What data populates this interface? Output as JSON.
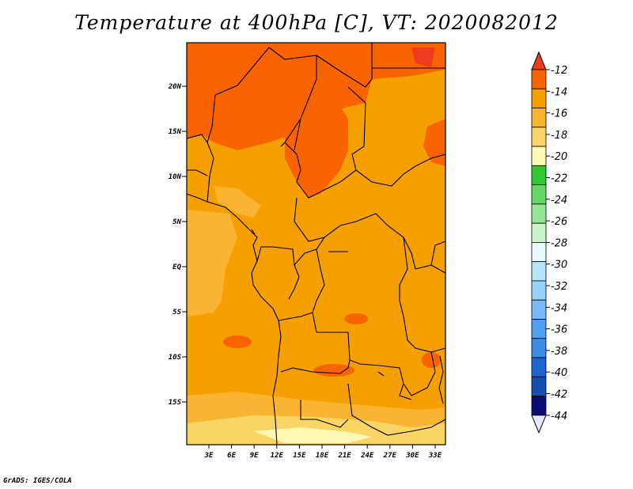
{
  "title": "Temperature at 400hPa [C], VT: 2020082012",
  "credit": "GrADS: IGES/COLA",
  "map": {
    "lat_ticks": [
      "20N",
      "15N",
      "10N",
      "5N",
      "EQ",
      "5S",
      "10S",
      "15S"
    ],
    "lon_ticks": [
      "3E",
      "6E",
      "9E",
      "12E",
      "15E",
      "18E",
      "21E",
      "24E",
      "27E",
      "30E",
      "33E"
    ]
  },
  "colorbar": {
    "labels": [
      "-12",
      "-14",
      "-16",
      "-18",
      "-20",
      "-22",
      "-24",
      "-26",
      "-28",
      "-30",
      "-32",
      "-34",
      "-36",
      "-38",
      "-40",
      "-42",
      "-44"
    ],
    "colors": [
      "#f03c1e",
      "#fa6400",
      "#f5a000",
      "#fab432",
      "#fad464",
      "#fff8b4",
      "#32c832",
      "#64d764",
      "#96e696",
      "#c8f5c8",
      "#e6faff",
      "#b4e6fa",
      "#96d2fa",
      "#78b9fa",
      "#50a0f0",
      "#3c8ce6",
      "#1e64d2",
      "#1450b4",
      "#0a0a78",
      "#e6e6ff"
    ]
  }
}
